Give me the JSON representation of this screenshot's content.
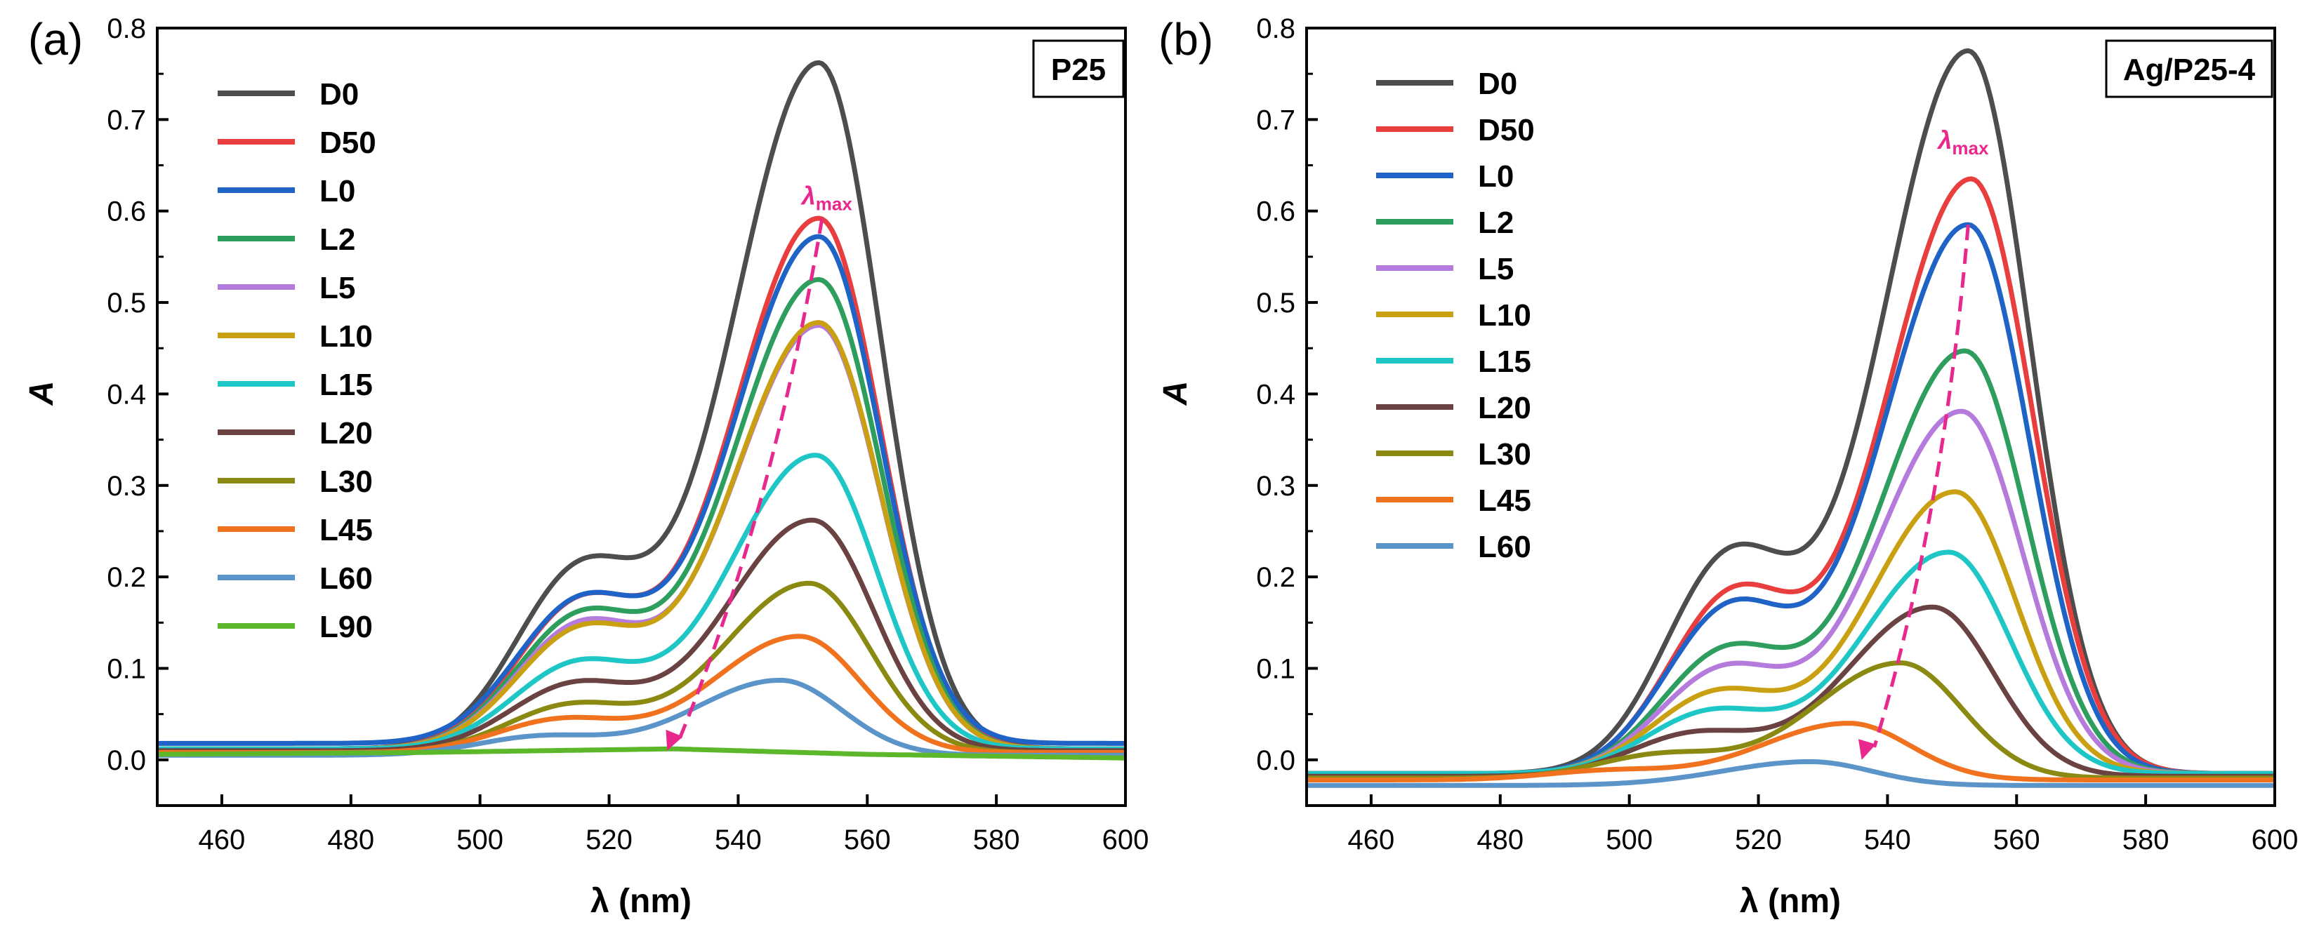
{
  "chart_data": [
    {
      "type": "line",
      "panel_label": "(a)",
      "box_label": "P25",
      "xlabel": "λ (nm)",
      "ylabel": "A",
      "xlim": [
        450,
        600
      ],
      "ylim": [
        -0.05,
        0.8
      ],
      "x_ticks": [
        460,
        480,
        500,
        520,
        540,
        560,
        580,
        600
      ],
      "y_ticks": [
        0.0,
        0.1,
        0.2,
        0.3,
        0.4,
        0.5,
        0.6,
        0.7,
        0.8
      ],
      "legend_position": "top-left",
      "annotation": {
        "text": "λmax",
        "text_main": "λ",
        "text_sub": "max",
        "arrow_from": [
          553,
          0.592
        ],
        "arrow_to": [
          529,
          0.01
        ],
        "arrow_color": "#E8288C",
        "label_at": [
          552,
          0.607
        ]
      },
      "series": [
        {
          "name": "D0",
          "color": "#4D4D4D",
          "baseline": 0.012,
          "peak": 0.762,
          "peak_x": 552.5,
          "shoulder": 0.19
        },
        {
          "name": "D50",
          "color": "#E83E3E",
          "baseline": 0.012,
          "peak": 0.592,
          "peak_x": 552.5,
          "shoulder": 0.155
        },
        {
          "name": "L0",
          "color": "#1F63C6",
          "baseline": 0.018,
          "peak": 0.572,
          "peak_x": 552.5,
          "shoulder": 0.15
        },
        {
          "name": "L2",
          "color": "#2E9E5E",
          "baseline": 0.012,
          "peak": 0.525,
          "peak_x": 552.5,
          "shoulder": 0.14
        },
        {
          "name": "L5",
          "color": "#B57BDC",
          "baseline": 0.012,
          "peak": 0.475,
          "peak_x": 552.5,
          "shoulder": 0.13
        },
        {
          "name": "L10",
          "color": "#C9A012",
          "baseline": 0.012,
          "peak": 0.478,
          "peak_x": 552.5,
          "shoulder": 0.125
        },
        {
          "name": "L15",
          "color": "#1EC6C6",
          "baseline": 0.012,
          "peak": 0.333,
          "peak_x": 552,
          "shoulder": 0.09
        },
        {
          "name": "L20",
          "color": "#6B4242",
          "baseline": 0.01,
          "peak": 0.262,
          "peak_x": 551.5,
          "shoulder": 0.07
        },
        {
          "name": "L30",
          "color": "#8A8A12",
          "baseline": 0.008,
          "peak": 0.193,
          "peak_x": 551,
          "shoulder": 0.05
        },
        {
          "name": "L45",
          "color": "#F0721E",
          "baseline": 0.008,
          "peak": 0.135,
          "peak_x": 549.5,
          "shoulder": 0.035
        },
        {
          "name": "L60",
          "color": "#5B94C8",
          "baseline": 0.005,
          "peak": 0.087,
          "peak_x": 546.5,
          "shoulder": 0.02
        },
        {
          "name": "L90",
          "color": "#5CB82A",
          "flat": [
            [
              450,
              0.006
            ],
            [
              490,
              0.008
            ],
            [
              530,
              0.012
            ],
            [
              560,
              0.006
            ],
            [
              600,
              0.002
            ]
          ]
        }
      ]
    },
    {
      "type": "line",
      "panel_label": "(b)",
      "box_label": "Ag/P25-4",
      "xlabel": "λ (nm)",
      "ylabel": "A",
      "xlim": [
        450,
        600
      ],
      "ylim": [
        -0.05,
        0.8
      ],
      "x_ticks": [
        460,
        480,
        500,
        520,
        540,
        560,
        580,
        600
      ],
      "y_ticks": [
        0.0,
        0.1,
        0.2,
        0.3,
        0.4,
        0.5,
        0.6,
        0.7,
        0.8
      ],
      "legend_position": "top-left",
      "annotation": {
        "text": "λmax",
        "text_main": "λ",
        "text_sub": "max",
        "arrow_from": [
          552.5,
          0.585
        ],
        "arrow_to": [
          536,
          0.0
        ],
        "arrow_color": "#E8288C",
        "label_at": [
          550,
          0.668
        ]
      },
      "series": [
        {
          "name": "D0",
          "color": "#4D4D4D",
          "baseline": -0.015,
          "peak": 0.775,
          "peak_x": 552.5,
          "shoulder": 0.23
        },
        {
          "name": "D50",
          "color": "#E83E3E",
          "baseline": -0.015,
          "peak": 0.635,
          "peak_x": 553,
          "shoulder": 0.19
        },
        {
          "name": "L0",
          "color": "#1F63C6",
          "baseline": -0.015,
          "peak": 0.585,
          "peak_x": 552.5,
          "shoulder": 0.175
        },
        {
          "name": "L2",
          "color": "#2E9E5E",
          "baseline": -0.015,
          "peak": 0.447,
          "peak_x": 552,
          "shoulder": 0.13
        },
        {
          "name": "L5",
          "color": "#B57BDC",
          "baseline": -0.015,
          "peak": 0.381,
          "peak_x": 551.5,
          "shoulder": 0.11
        },
        {
          "name": "L10",
          "color": "#C9A012",
          "baseline": -0.015,
          "peak": 0.293,
          "peak_x": 550.5,
          "shoulder": 0.085
        },
        {
          "name": "L15",
          "color": "#1EC6C6",
          "baseline": -0.015,
          "peak": 0.227,
          "peak_x": 549.5,
          "shoulder": 0.065
        },
        {
          "name": "L20",
          "color": "#6B4242",
          "baseline": -0.018,
          "peak": 0.167,
          "peak_x": 547,
          "shoulder": 0.045
        },
        {
          "name": "L30",
          "color": "#8A8A12",
          "baseline": -0.02,
          "peak": 0.106,
          "peak_x": 542,
          "shoulder": 0.025
        },
        {
          "name": "L45",
          "color": "#F0721E",
          "baseline": -0.022,
          "peak": 0.04,
          "peak_x": 534,
          "shoulder": 0.01
        },
        {
          "name": "L60",
          "color": "#5B94C8",
          "baseline": -0.028,
          "peak": -0.002,
          "peak_x": 528,
          "shoulder": 0.0
        }
      ]
    }
  ]
}
